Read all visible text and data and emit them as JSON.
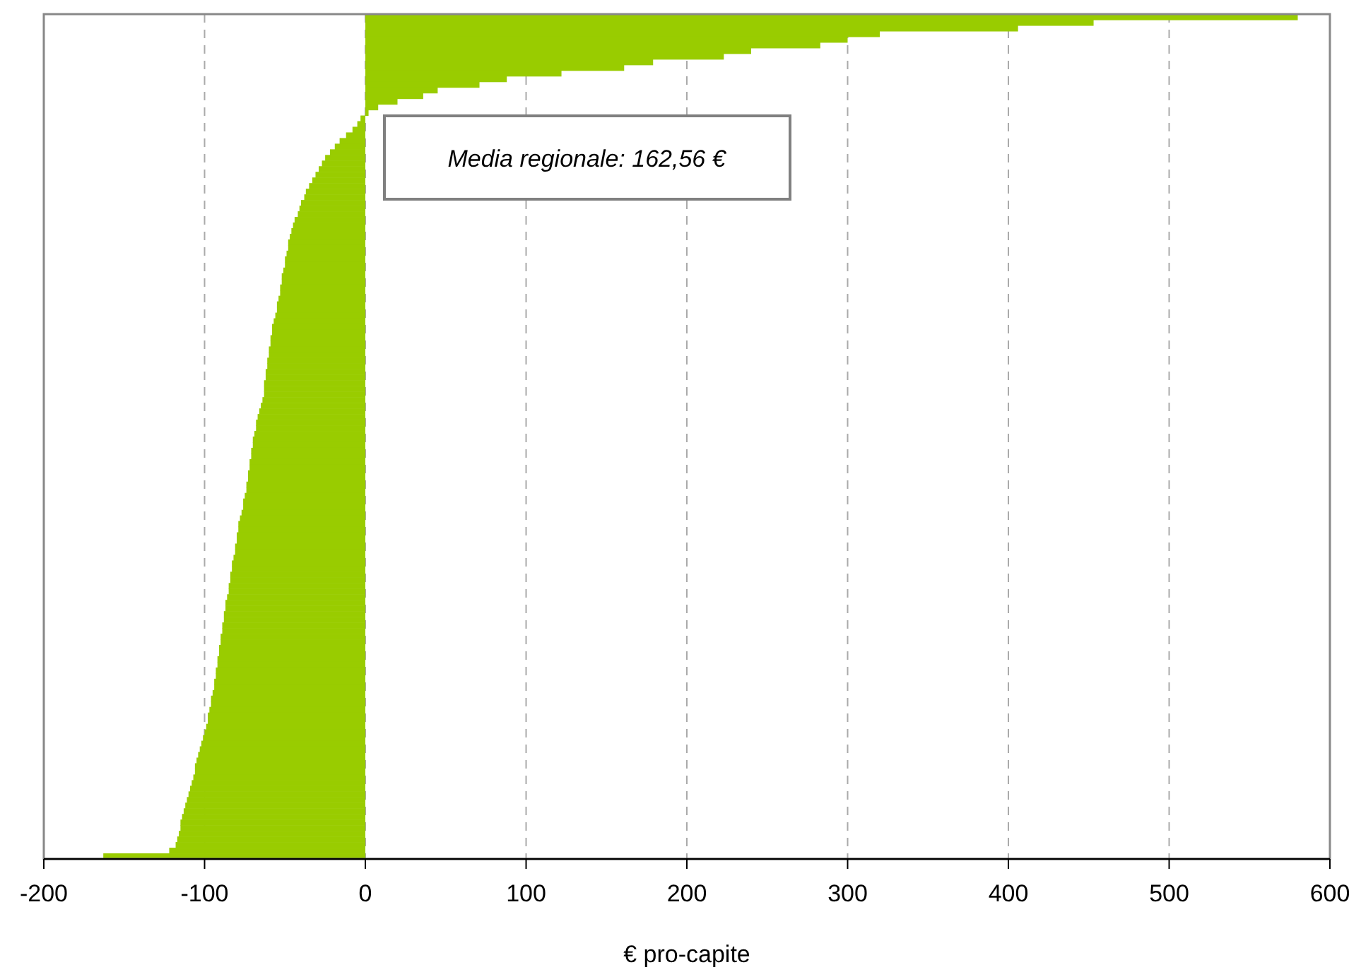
{
  "chart_data": {
    "type": "bar",
    "orientation": "horizontal",
    "xlabel": "€ pro-capite",
    "annotations": [
      "Media regionale: 162,56 €"
    ],
    "categories": [
      null,
      null,
      null,
      null,
      null,
      null,
      null,
      null,
      null,
      null,
      null,
      null,
      null,
      null,
      null,
      null,
      null,
      null,
      null,
      null,
      null,
      null,
      null,
      null,
      null,
      null,
      null,
      null,
      null,
      null,
      null,
      null,
      null,
      null,
      null,
      null,
      null,
      null,
      null,
      null,
      null,
      null,
      null,
      null,
      null,
      null,
      null,
      null,
      null,
      null,
      null,
      null,
      null,
      null,
      null,
      null,
      null,
      null,
      null,
      null,
      null,
      null,
      null,
      null,
      null,
      null,
      null,
      null,
      null,
      null,
      null,
      null,
      null,
      null,
      null,
      null,
      null,
      null,
      null,
      null,
      null,
      null,
      null,
      null,
      null,
      null,
      null,
      null,
      null,
      null,
      null,
      null,
      null,
      null,
      null,
      null,
      null,
      null,
      null,
      null,
      null,
      null,
      null,
      null,
      null,
      null,
      null,
      null,
      null,
      null,
      null,
      null,
      null,
      null,
      null,
      null,
      null,
      null,
      null,
      null,
      null,
      null,
      null,
      null,
      null,
      null,
      null,
      null,
      null,
      null,
      null,
      null,
      null,
      null,
      null,
      null,
      null,
      null,
      null,
      null,
      null,
      null,
      null,
      null,
      null,
      null,
      null,
      null,
      null,
      null
    ],
    "values": [
      580,
      453,
      406,
      320,
      300,
      283,
      240,
      223,
      179,
      161,
      122,
      88,
      71,
      45,
      36,
      20,
      8,
      2,
      -3,
      -5,
      -8,
      -12,
      -16,
      -19,
      -22,
      -25,
      -27,
      -29,
      -31,
      -33,
      -35,
      -37,
      -38,
      -40,
      -41,
      -42,
      -44,
      -45,
      -46,
      -47,
      -48,
      -48,
      -49,
      -50,
      -50,
      -51,
      -52,
      -52,
      -53,
      -53,
      -54,
      -55,
      -55,
      -56,
      -57,
      -58,
      -58,
      -59,
      -59,
      -60,
      -60,
      -61,
      -61,
      -62,
      -62,
      -63,
      -63,
      -63,
      -64,
      -65,
      -66,
      -67,
      -68,
      -68,
      -69,
      -70,
      -70,
      -71,
      -71,
      -72,
      -72,
      -73,
      -73,
      -74,
      -74,
      -75,
      -76,
      -76,
      -77,
      -78,
      -79,
      -79,
      -80,
      -80,
      -81,
      -81,
      -82,
      -83,
      -83,
      -84,
      -84,
      -85,
      -85,
      -86,
      -87,
      -87,
      -88,
      -88,
      -89,
      -89,
      -90,
      -90,
      -91,
      -91,
      -92,
      -92,
      -93,
      -93,
      -94,
      -94,
      -95,
      -96,
      -96,
      -97,
      -98,
      -98,
      -99,
      -100,
      -101,
      -102,
      -103,
      -104,
      -105,
      -106,
      -106,
      -107,
      -108,
      -109,
      -110,
      -111,
      -112,
      -113,
      -114,
      -115,
      -115,
      -116,
      -117,
      -118,
      -122,
      -163
    ],
    "color": "#99cc00",
    "xlim": [
      -200,
      600
    ],
    "xticks": [
      -200,
      -100,
      0,
      100,
      200,
      300,
      400,
      500,
      600
    ],
    "grid": "x",
    "tick_labels": "x"
  }
}
